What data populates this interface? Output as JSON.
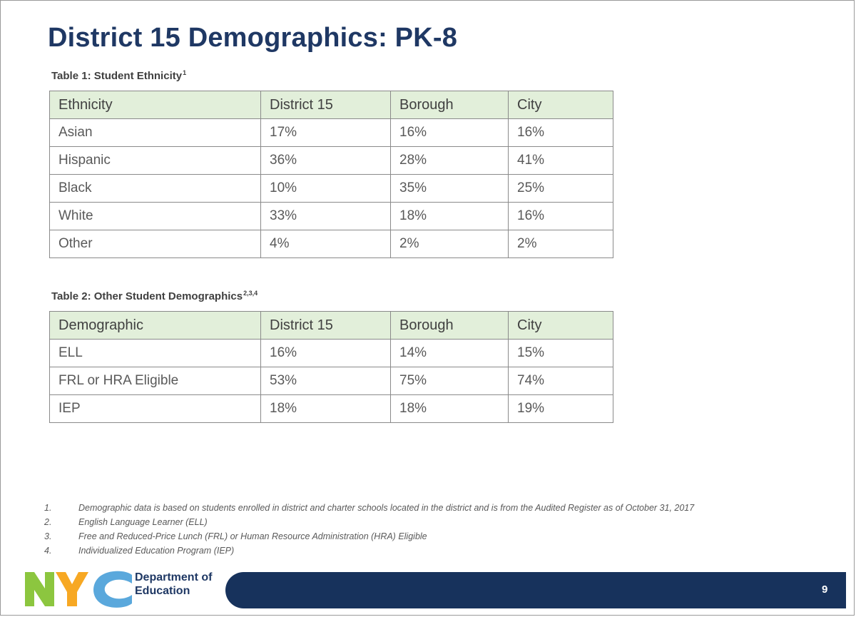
{
  "title": "District 15 Demographics: PK-8",
  "table1": {
    "caption": "Table 1: Student Ethnicity",
    "caption_sup": "1",
    "headers": [
      "Ethnicity",
      "District 15",
      "Borough",
      "City"
    ],
    "rows": [
      [
        "Asian",
        "17%",
        "16%",
        "16%"
      ],
      [
        "Hispanic",
        "36%",
        "28%",
        "41%"
      ],
      [
        "Black",
        "10%",
        "35%",
        "25%"
      ],
      [
        "White",
        "33%",
        "18%",
        "16%"
      ],
      [
        "Other",
        "4%",
        "2%",
        "2%"
      ]
    ]
  },
  "table2": {
    "caption": "Table 2: Other Student Demographics",
    "caption_sup": "2,3,4",
    "headers": [
      "Demographic",
      "District 15",
      "Borough",
      "City"
    ],
    "rows": [
      [
        "ELL",
        "16%",
        "14%",
        "15%"
      ],
      [
        "FRL or HRA Eligible",
        "53%",
        "75%",
        "74%"
      ],
      [
        "IEP",
        "18%",
        "18%",
        "19%"
      ]
    ]
  },
  "footnotes": [
    {
      "num": "1.",
      "text": "Demographic data is based on students enrolled in district and charter schools located in the district and is from the Audited Register as of October 31, 2017"
    },
    {
      "num": "2.",
      "text": "English Language Learner (ELL)"
    },
    {
      "num": "3.",
      "text": "Free and Reduced-Price Lunch (FRL) or Human Resource Administration (HRA) Eligible"
    },
    {
      "num": "4.",
      "text": "Individualized Education Program (IEP)"
    }
  ],
  "footer": {
    "logo_letters": "NYC",
    "dept_line1": "Department of",
    "dept_line2": "Education",
    "page_number": "9",
    "colors": {
      "n": "#8cc63f",
      "y": "#f7a823",
      "c": "#5aa8dc",
      "bar": "#17325c"
    }
  }
}
